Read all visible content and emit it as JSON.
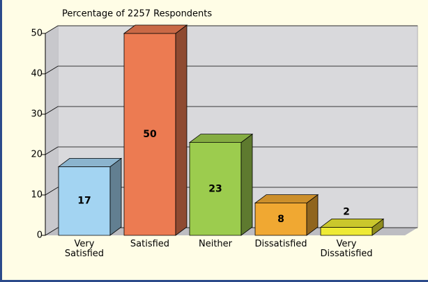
{
  "chart_data": {
    "type": "bar3d",
    "title": "Percentage of 2257 Respondents",
    "categories": [
      "Very Satisfied",
      "Satisfied",
      "Neither",
      "Dissatisfied",
      "Very Dissatisfied"
    ],
    "values": [
      17,
      50,
      23,
      8,
      2
    ],
    "colors": [
      "#a3d4f2",
      "#ec7b52",
      "#9ccc4e",
      "#f0a832",
      "#eeea34"
    ],
    "ylim": [
      0,
      50
    ],
    "yticks": [
      0,
      10,
      20,
      30,
      40,
      50
    ],
    "grid": true
  }
}
